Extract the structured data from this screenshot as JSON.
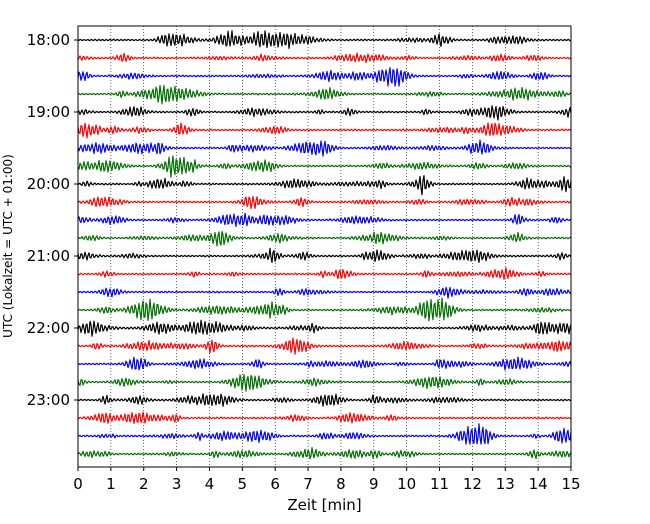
{
  "chart_data": {
    "type": "line",
    "title": "",
    "xlabel": "Zeit  [min]",
    "ylabel": "UTC (Lokalzeit = UTC + 01:00)",
    "xlim": [
      0,
      15
    ],
    "x_ticks": [
      0,
      1,
      2,
      3,
      4,
      5,
      6,
      7,
      8,
      9,
      10,
      11,
      12,
      13,
      14,
      15
    ],
    "x_tick_labels": [
      "0",
      "1",
      "2",
      "3",
      "4",
      "5",
      "6",
      "7",
      "8",
      "9",
      "10",
      "11",
      "12",
      "13",
      "14",
      "15"
    ],
    "grid": "vertical dotted lines at each minute",
    "trace_interval_minutes": 15,
    "y_tick_labels": [
      {
        "label": "18:00",
        "trace": 0
      },
      {
        "label": "19:00",
        "trace": 4
      },
      {
        "label": "20:00",
        "trace": 8
      },
      {
        "label": "21:00",
        "trace": 12
      },
      {
        "label": "22:00",
        "trace": 16
      },
      {
        "label": "23:00",
        "trace": 20
      }
    ],
    "color_cycle": [
      "#000000",
      "#ff0000",
      "#0000ff",
      "#007000"
    ],
    "traces": [
      {
        "start": "18:00"
      },
      {
        "start": "18:15"
      },
      {
        "start": "18:30"
      },
      {
        "start": "18:45"
      },
      {
        "start": "19:00"
      },
      {
        "start": "19:15"
      },
      {
        "start": "19:30"
      },
      {
        "start": "19:45"
      },
      {
        "start": "20:00"
      },
      {
        "start": "20:15"
      },
      {
        "start": "20:30"
      },
      {
        "start": "20:45"
      },
      {
        "start": "21:00"
      },
      {
        "start": "21:15"
      },
      {
        "start": "21:30"
      },
      {
        "start": "21:45"
      },
      {
        "start": "22:00"
      },
      {
        "start": "22:15"
      },
      {
        "start": "22:30"
      },
      {
        "start": "22:45"
      },
      {
        "start": "23:00"
      },
      {
        "start": "23:15"
      },
      {
        "start": "23:30"
      },
      {
        "start": "23:45"
      }
    ]
  }
}
